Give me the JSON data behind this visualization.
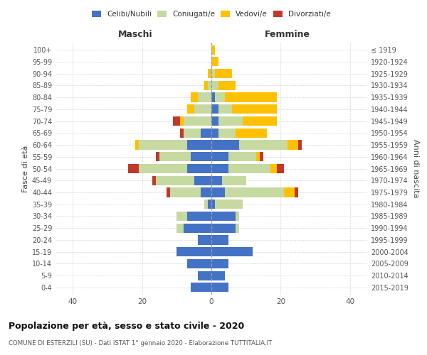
{
  "age_groups": [
    "0-4",
    "5-9",
    "10-14",
    "15-19",
    "20-24",
    "25-29",
    "30-34",
    "35-39",
    "40-44",
    "45-49",
    "50-54",
    "55-59",
    "60-64",
    "65-69",
    "70-74",
    "75-79",
    "80-84",
    "85-89",
    "90-94",
    "95-99",
    "100+"
  ],
  "birth_years": [
    "2015-2019",
    "2010-2014",
    "2005-2009",
    "2000-2004",
    "1995-1999",
    "1990-1994",
    "1985-1989",
    "1980-1984",
    "1975-1979",
    "1970-1974",
    "1965-1969",
    "1960-1964",
    "1955-1959",
    "1950-1954",
    "1945-1949",
    "1940-1944",
    "1935-1939",
    "1930-1934",
    "1925-1929",
    "1920-1924",
    "≤ 1919"
  ],
  "males": {
    "celibe": [
      6,
      4,
      7,
      10,
      4,
      8,
      7,
      1,
      3,
      5,
      7,
      6,
      7,
      3,
      0,
      0,
      0,
      0,
      0,
      0,
      0
    ],
    "coniugato": [
      0,
      0,
      0,
      0,
      0,
      2,
      3,
      1,
      9,
      11,
      14,
      9,
      14,
      5,
      8,
      5,
      4,
      1,
      0,
      0,
      0
    ],
    "vedovo": [
      0,
      0,
      0,
      0,
      0,
      0,
      0,
      0,
      0,
      0,
      0,
      0,
      1,
      0,
      1,
      2,
      2,
      1,
      1,
      0,
      0
    ],
    "divorziato": [
      0,
      0,
      0,
      0,
      0,
      0,
      0,
      0,
      1,
      1,
      3,
      1,
      0,
      1,
      2,
      0,
      0,
      0,
      0,
      0,
      0
    ]
  },
  "females": {
    "nubile": [
      5,
      4,
      5,
      12,
      5,
      7,
      7,
      1,
      4,
      3,
      5,
      5,
      8,
      2,
      2,
      2,
      1,
      0,
      0,
      0,
      0
    ],
    "coniugata": [
      0,
      0,
      0,
      0,
      0,
      1,
      1,
      8,
      17,
      7,
      12,
      8,
      14,
      5,
      7,
      4,
      3,
      2,
      1,
      0,
      0
    ],
    "vedova": [
      0,
      0,
      0,
      0,
      0,
      0,
      0,
      0,
      3,
      0,
      2,
      1,
      3,
      9,
      10,
      13,
      15,
      5,
      5,
      2,
      1
    ],
    "divorziata": [
      0,
      0,
      0,
      0,
      0,
      0,
      0,
      0,
      1,
      0,
      2,
      1,
      1,
      0,
      0,
      0,
      0,
      0,
      0,
      0,
      0
    ]
  },
  "color_celibe": "#4472c4",
  "color_coniugato": "#c5d9a0",
  "color_vedovo": "#ffc000",
  "color_divorziato": "#c0392b",
  "title": "Popolazione per età, sesso e stato civile - 2020",
  "subtitle": "COMUNE DI ESTERZILI (SU) - Dati ISTAT 1° gennaio 2020 - Elaborazione TUTTITALIA.IT",
  "xlabel_left": "Maschi",
  "xlabel_right": "Femmine",
  "ylabel_left": "Fasce di età",
  "ylabel_right": "Anni di nascita",
  "xlim": 45,
  "bg_color": "#ffffff",
  "grid_color": "#cccccc",
  "legend_labels": [
    "Celibi/Nubili",
    "Coniugati/e",
    "Vedovi/e",
    "Divorziati/e"
  ]
}
